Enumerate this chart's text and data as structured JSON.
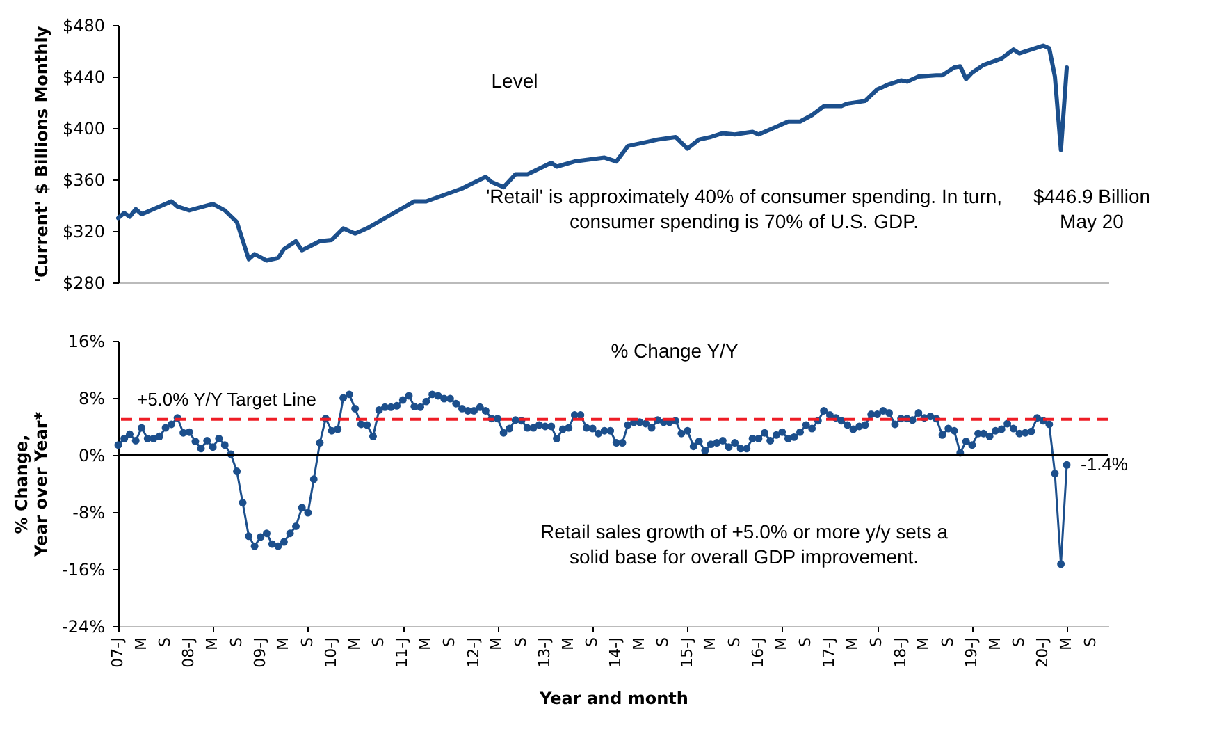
{
  "chart_data": [
    {
      "type": "line",
      "ylabel": "'Current' $ Billions Monthly",
      "x": [
        "2007-01",
        "2007-02",
        "2007-03",
        "2007-04",
        "2007-05",
        "2007-10",
        "2007-11",
        "2008-01",
        "2008-05",
        "2008-07",
        "2008-09",
        "2008-11",
        "2008-12",
        "2009-02",
        "2009-04",
        "2009-05",
        "2009-07",
        "2009-08",
        "2009-11",
        "2010-01",
        "2010-03",
        "2010-05",
        "2010-07",
        "2010-10",
        "2011-03",
        "2011-05",
        "2011-08",
        "2011-11",
        "2012-03",
        "2012-04",
        "2012-06",
        "2012-08",
        "2012-10",
        "2013-02",
        "2013-03",
        "2013-06",
        "2013-11",
        "2014-01",
        "2014-03",
        "2014-06",
        "2014-08",
        "2014-11",
        "2015-01",
        "2015-03",
        "2015-05",
        "2015-07",
        "2015-09",
        "2015-12",
        "2016-01",
        "2016-04",
        "2016-06",
        "2016-08",
        "2016-10",
        "2016-12",
        "2017-03",
        "2017-04",
        "2017-07",
        "2017-09",
        "2017-11",
        "2018-01",
        "2018-02",
        "2018-04",
        "2018-07",
        "2018-08",
        "2018-10",
        "2018-11",
        "2018-12",
        "2019-01",
        "2019-03",
        "2019-06",
        "2019-08",
        "2019-09",
        "2019-11",
        "2020-01",
        "2020-02",
        "2020-03",
        "2020-04",
        "2020-05"
      ],
      "series": [
        {
          "color": "#1c4f8c",
          "values": [
            330,
            334,
            331,
            337,
            333,
            343,
            339,
            336,
            341,
            336,
            327,
            298,
            302,
            297,
            299,
            306,
            312,
            305,
            312,
            313,
            322,
            318,
            322,
            330,
            343,
            343,
            348,
            353,
            362,
            358,
            354,
            364,
            364,
            373,
            370,
            374,
            377,
            374,
            386,
            389,
            391,
            393,
            384,
            391,
            393,
            396,
            395,
            397,
            395,
            401,
            405,
            405,
            410,
            417,
            417,
            419,
            421,
            430,
            434,
            437,
            436,
            440,
            441,
            441,
            447,
            448,
            438,
            443,
            449,
            454,
            461,
            458,
            461,
            464,
            462,
            440,
            383,
            447
          ]
        }
      ],
      "xlim": [
        "2007-01",
        "2020-12"
      ],
      "ylim": [
        280,
        480
      ],
      "yticks": [
        {
          "value": 280,
          "label": "$280"
        },
        {
          "value": 320,
          "label": "$320"
        },
        {
          "value": 360,
          "label": "$360"
        },
        {
          "value": 400,
          "label": "$400"
        },
        {
          "value": 440,
          "label": "$440"
        },
        {
          "value": 480,
          "label": "$480"
        }
      ],
      "annotations": [
        "Level",
        "'Retail' is approximately 40% of consumer spending. In turn,\nconsumer spending is 70% of U.S. GDP.",
        "$446.9 Billion\nMay 20"
      ]
    },
    {
      "type": "line",
      "xlabel": "Year and month",
      "ylabel": "% Change,\nYear over Year*",
      "x": [
        "2007-01",
        "2007-02",
        "2007-03",
        "2007-04",
        "2007-05",
        "2007-06",
        "2007-07",
        "2007-08",
        "2007-09",
        "2007-10",
        "2007-11",
        "2007-12",
        "2008-01",
        "2008-02",
        "2008-03",
        "2008-04",
        "2008-05",
        "2008-06",
        "2008-07",
        "2008-08",
        "2008-09",
        "2008-10",
        "2008-11",
        "2008-12",
        "2009-01",
        "2009-02",
        "2009-03",
        "2009-04",
        "2009-05",
        "2009-06",
        "2009-07",
        "2009-08",
        "2009-09",
        "2009-10",
        "2009-11",
        "2009-12",
        "2010-01",
        "2010-02",
        "2010-03",
        "2010-04",
        "2010-05",
        "2010-06",
        "2010-07",
        "2010-08",
        "2010-09",
        "2010-10",
        "2010-11",
        "2010-12",
        "2011-01",
        "2011-02",
        "2011-03",
        "2011-04",
        "2011-05",
        "2011-06",
        "2011-07",
        "2011-08",
        "2011-09",
        "2011-10",
        "2011-11",
        "2011-12",
        "2012-01",
        "2012-02",
        "2012-03",
        "2012-04",
        "2012-05",
        "2012-06",
        "2012-07",
        "2012-08",
        "2012-09",
        "2012-10",
        "2012-11",
        "2012-12",
        "2013-01",
        "2013-02",
        "2013-03",
        "2013-04",
        "2013-05",
        "2013-06",
        "2013-07",
        "2013-08",
        "2013-09",
        "2013-10",
        "2013-11",
        "2013-12",
        "2014-01",
        "2014-02",
        "2014-03",
        "2014-04",
        "2014-05",
        "2014-06",
        "2014-07",
        "2014-08",
        "2014-09",
        "2014-10",
        "2014-11",
        "2014-12",
        "2015-01",
        "2015-02",
        "2015-03",
        "2015-04",
        "2015-05",
        "2015-06",
        "2015-07",
        "2015-08",
        "2015-09",
        "2015-10",
        "2015-11",
        "2015-12",
        "2016-01",
        "2016-02",
        "2016-03",
        "2016-04",
        "2016-05",
        "2016-06",
        "2016-07",
        "2016-08",
        "2016-09",
        "2016-10",
        "2016-11",
        "2016-12",
        "2017-01",
        "2017-02",
        "2017-03",
        "2017-04",
        "2017-05",
        "2017-06",
        "2017-07",
        "2017-08",
        "2017-09",
        "2017-10",
        "2017-11",
        "2017-12",
        "2018-01",
        "2018-02",
        "2018-03",
        "2018-04",
        "2018-05",
        "2018-06",
        "2018-07",
        "2018-08",
        "2018-09",
        "2018-10",
        "2018-11",
        "2018-12",
        "2019-01",
        "2019-02",
        "2019-03",
        "2019-04",
        "2019-05",
        "2019-06",
        "2019-07",
        "2019-08",
        "2019-09",
        "2019-10",
        "2019-11",
        "2019-12",
        "2020-01",
        "2020-02",
        "2020-03",
        "2020-04",
        "2020-05"
      ],
      "series": [
        {
          "color": "#1c4f8c",
          "values": [
            1.4,
            2.3,
            2.9,
            2.0,
            3.8,
            2.3,
            2.3,
            2.6,
            3.8,
            4.3,
            5.2,
            3.1,
            3.2,
            1.9,
            0.9,
            2.0,
            1.1,
            2.3,
            1.4,
            0.1,
            -2.3,
            -6.7,
            -11.4,
            -12.8,
            -11.5,
            -11.0,
            -12.5,
            -12.8,
            -12.2,
            -11.0,
            -10.0,
            -7.4,
            -8.1,
            -3.4,
            1.7,
            5.1,
            3.4,
            3.6,
            8.0,
            8.5,
            6.5,
            4.3,
            4.2,
            2.6,
            6.3,
            6.7,
            6.7,
            6.9,
            7.7,
            8.3,
            6.8,
            6.7,
            7.5,
            8.5,
            8.3,
            7.9,
            7.9,
            7.2,
            6.5,
            6.2,
            6.2,
            6.7,
            6.2,
            5.1,
            5.1,
            3.1,
            3.7,
            4.9,
            4.8,
            3.8,
            3.8,
            4.2,
            4.0,
            4.0,
            2.3,
            3.6,
            3.8,
            5.6,
            5.6,
            3.8,
            3.7,
            3.0,
            3.4,
            3.4,
            1.7,
            1.7,
            4.2,
            4.6,
            4.6,
            4.4,
            3.8,
            4.9,
            4.6,
            4.6,
            4.8,
            3.0,
            3.4,
            1.2,
            1.9,
            0.6,
            1.5,
            1.7,
            2.0,
            1.1,
            1.7,
            0.9,
            0.9,
            2.3,
            2.3,
            3.1,
            2.0,
            2.8,
            3.2,
            2.3,
            2.5,
            3.2,
            4.2,
            3.7,
            4.8,
            6.2,
            5.6,
            5.2,
            4.8,
            4.2,
            3.6,
            4.0,
            4.2,
            5.7,
            5.7,
            6.2,
            5.9,
            4.3,
            5.1,
            5.1,
            4.9,
            5.9,
            5.2,
            5.4,
            5.1,
            2.8,
            3.7,
            3.4,
            0.3,
            1.9,
            1.4,
            3.0,
            3.0,
            2.6,
            3.4,
            3.6,
            4.4,
            3.7,
            3.0,
            3.1,
            3.3,
            5.2,
            4.8,
            4.3,
            -2.6,
            -15.3,
            -1.4
          ]
        }
      ],
      "xlim": [
        "2007-01",
        "2020-12"
      ],
      "xticks": [
        {
          "value": "2007-01",
          "label": "07-J"
        },
        {
          "value": "2007-05",
          "label": "M"
        },
        {
          "value": "2007-09",
          "label": "S"
        },
        {
          "value": "2008-01",
          "label": "08-J"
        },
        {
          "value": "2008-05",
          "label": "M"
        },
        {
          "value": "2008-09",
          "label": "S"
        },
        {
          "value": "2009-01",
          "label": "09-J"
        },
        {
          "value": "2009-05",
          "label": "M"
        },
        {
          "value": "2009-09",
          "label": "S"
        },
        {
          "value": "2010-01",
          "label": "10-J"
        },
        {
          "value": "2010-05",
          "label": "M"
        },
        {
          "value": "2010-09",
          "label": "S"
        },
        {
          "value": "2011-01",
          "label": "11-J"
        },
        {
          "value": "2011-05",
          "label": "M"
        },
        {
          "value": "2011-09",
          "label": "S"
        },
        {
          "value": "2012-01",
          "label": "12-J"
        },
        {
          "value": "2012-05",
          "label": "M"
        },
        {
          "value": "2012-09",
          "label": "S"
        },
        {
          "value": "2013-01",
          "label": "13-J"
        },
        {
          "value": "2013-05",
          "label": "M"
        },
        {
          "value": "2013-09",
          "label": "S"
        },
        {
          "value": "2014-01",
          "label": "14-J"
        },
        {
          "value": "2014-05",
          "label": "M"
        },
        {
          "value": "2014-09",
          "label": "S"
        },
        {
          "value": "2015-01",
          "label": "15-J"
        },
        {
          "value": "2015-05",
          "label": "M"
        },
        {
          "value": "2015-09",
          "label": "S"
        },
        {
          "value": "2016-01",
          "label": "16-J"
        },
        {
          "value": "2016-05",
          "label": "M"
        },
        {
          "value": "2016-09",
          "label": "S"
        },
        {
          "value": "2017-01",
          "label": "17-J"
        },
        {
          "value": "2017-05",
          "label": "M"
        },
        {
          "value": "2017-09",
          "label": "S"
        },
        {
          "value": "2018-01",
          "label": "18-J"
        },
        {
          "value": "2018-05",
          "label": "M"
        },
        {
          "value": "2018-09",
          "label": "S"
        },
        {
          "value": "2019-01",
          "label": "19-J"
        },
        {
          "value": "2019-05",
          "label": "M"
        },
        {
          "value": "2019-09",
          "label": "S"
        },
        {
          "value": "2020-01",
          "label": "20-J"
        },
        {
          "value": "2020-05",
          "label": "M"
        },
        {
          "value": "2020-09",
          "label": "S"
        }
      ],
      "ylim": [
        -24,
        16
      ],
      "yticks": [
        {
          "value": -24,
          "label": "-24%"
        },
        {
          "value": -16,
          "label": "-16%"
        },
        {
          "value": -8,
          "label": "-8%"
        },
        {
          "value": 0,
          "label": "0%"
        },
        {
          "value": 8,
          "label": "8%"
        },
        {
          "value": 16,
          "label": "16%"
        }
      ],
      "marker": "circle",
      "ref_lines": [
        {
          "axis": "y",
          "value": 5,
          "label": "+5.0% Y/Y Target Line",
          "color": "#ee1c25",
          "line_style": "dashed"
        },
        {
          "axis": "y",
          "value": 0,
          "color": "#000000"
        }
      ],
      "annotations": [
        "% Change Y/Y",
        "Retail sales growth of +5.0% or more y/y sets a\nsolid base for overall GDP improvement.",
        {
          "text": "-1.4%",
          "x": "2020-05",
          "y": -1.4
        }
      ]
    }
  ]
}
